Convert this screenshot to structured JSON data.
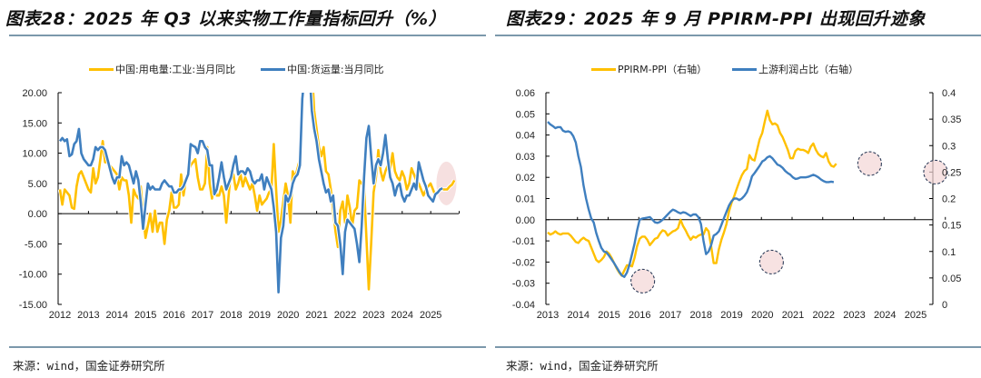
{
  "left": {
    "title": "图表28：2025 年 Q3 以来实物工作量指标回升（%）",
    "source": "来源：wind，国金证券研究所",
    "legend": [
      {
        "label": "中国:用电量:工业:当月同比",
        "color": "#FFC000"
      },
      {
        "label": "中国:货运量:当月同比",
        "color": "#3F7FBF"
      }
    ]
  },
  "right": {
    "title": "图表29：2025 年 9 月 PPIRM-PPI 出现回升迹象",
    "source": "来源：wind，国金证券研究所",
    "legend": [
      {
        "label": "PPIRM-PPI（右轴）",
        "color": "#FFC000"
      },
      {
        "label": "上游利润占比（右轴）",
        "color": "#3F7FBF"
      }
    ]
  },
  "chart_data": [
    {
      "type": "line",
      "title": "2025 年 Q3 以来实物工作量指标回升（%）",
      "xlabel": "",
      "ylabel": "",
      "ylim": [
        -15,
        20
      ],
      "yticks": [
        "20.00",
        "15.00",
        "10.00",
        "5.00",
        "0.00",
        "-5.00",
        "-10.00",
        "-15.00"
      ],
      "ytick_values": [
        20,
        15,
        10,
        5,
        0,
        -5,
        -10,
        -15
      ],
      "xticks": [
        "2012",
        "2013",
        "2014",
        "2015",
        "2016",
        "2017",
        "2018",
        "2019",
        "2020",
        "2021",
        "2022",
        "2023",
        "2024",
        "2025"
      ],
      "x_start": 2012.0,
      "x_step": 0.0833,
      "legend_position": "top",
      "highlight": {
        "x": 2025.55,
        "y": 5.0,
        "label": "2025 Q3"
      },
      "series": [
        {
          "name": "中国:用电量:工业:当月同比",
          "color": "#FFC000",
          "values": [
            4,
            1.5,
            4,
            3.5,
            3,
            1,
            0.8,
            4.5,
            6.5,
            7,
            6,
            5,
            4,
            3.5,
            7.5,
            5,
            6,
            9,
            12,
            8.5,
            8.5,
            8,
            7.5,
            7,
            6.5,
            4,
            6,
            5.5,
            5.5,
            3,
            -1.5,
            4,
            3,
            2.5,
            4.5,
            0,
            -4,
            -2,
            0,
            -3,
            0.5,
            -3,
            -1.5,
            -1.5,
            -5,
            -1,
            0.5,
            3.5,
            1,
            1,
            1.5,
            6.5,
            3,
            5.5,
            7,
            8,
            8.5,
            9,
            6,
            4,
            4,
            5,
            11,
            5,
            2.5,
            5,
            3,
            3,
            4.5,
            3,
            -1.5,
            3,
            7,
            6.5,
            4,
            5,
            6.5,
            4.5,
            6,
            5,
            4,
            5,
            3,
            0.5,
            3,
            1.5,
            2,
            2.5,
            3.5,
            4,
            11.5,
            4,
            -3,
            -1,
            2,
            5,
            3,
            -1.5,
            7,
            6,
            7.5,
            9,
            19,
            22,
            25,
            27,
            24,
            17,
            14,
            11,
            9.5,
            11,
            7,
            6.5,
            4,
            0.5,
            -3,
            -5.5,
            0.5,
            2,
            -1.5,
            3,
            1,
            -2,
            0.5,
            1,
            5.5,
            5,
            4.5,
            -4,
            -12.5,
            -5,
            3.5,
            6,
            10.5,
            7,
            5.5,
            7,
            8,
            7.5,
            10,
            7,
            6,
            5.5,
            7,
            6,
            4,
            5,
            7.5,
            6.5,
            5.5,
            5,
            4,
            3,
            4,
            4.5,
            5,
            4,
            3,
            3.5,
            4,
            4,
            4,
            4,
            4.5,
            4.8,
            5.5
          ]
        },
        {
          "name": "中国:货运量:当月同比",
          "color": "#3F7FBF",
          "values": [
            12,
            12.5,
            12,
            12.3,
            9.5,
            9.8,
            11.5,
            12,
            14,
            10,
            9,
            8.5,
            8,
            8,
            9,
            11,
            10.5,
            11,
            11,
            10.5,
            9,
            7.5,
            6,
            5,
            6,
            6,
            9.5,
            8,
            8.5,
            8,
            6.5,
            5,
            7,
            5.5,
            2,
            -2.5,
            1.5,
            5,
            4,
            4.5,
            4,
            4,
            4,
            5,
            5.5,
            5,
            4.5,
            4.5,
            3.5,
            3.5,
            4,
            4,
            4.5,
            5.5,
            6.5,
            11.5,
            11.2,
            11,
            10,
            12,
            12,
            11,
            10.5,
            8,
            8,
            3.2,
            4,
            6,
            8.5,
            6,
            4,
            5,
            6,
            8,
            9.5,
            6.5,
            7,
            7,
            6.5,
            7.5,
            7,
            5.5,
            5,
            5.5,
            5.5,
            6.5,
            4,
            6,
            5,
            4,
            1,
            -3,
            -13,
            -4,
            -2,
            3,
            2,
            3,
            5,
            6,
            6.5,
            8,
            19,
            23,
            25,
            24,
            17,
            14,
            12,
            9,
            7,
            5,
            3.5,
            4,
            2,
            3,
            -1.5,
            -2,
            -5,
            -10,
            -3,
            -1,
            -1.5,
            -2,
            -2.5,
            -5,
            -8,
            -2,
            6,
            12.5,
            14.5,
            9.5,
            5,
            8,
            9,
            8,
            10,
            13,
            9,
            6,
            5,
            3,
            4.5,
            5,
            3,
            2,
            3,
            3,
            4,
            5,
            4,
            8.5,
            7,
            5.5,
            4.5,
            3,
            2.5,
            2,
            3.2,
            3.5,
            4,
            4.2
          ]
        }
      ]
    },
    {
      "type": "line",
      "title": "2025 年 9 月 PPIRM-PPI 出现回升迹象",
      "xlabel": "",
      "ylabel": "",
      "ylim_left": [
        -0.04,
        0.06
      ],
      "ylim_right": [
        0,
        0.4
      ],
      "yticks_left": [
        "0.06",
        "0.05",
        "0.04",
        "0.03",
        "0.02",
        "0.01",
        "0.00",
        "-0.01",
        "-0.02",
        "-0.03",
        "-0.04"
      ],
      "ytick_values_left": [
        0.06,
        0.05,
        0.04,
        0.03,
        0.02,
        0.01,
        0,
        -0.01,
        -0.02,
        -0.03,
        -0.04
      ],
      "yticks_right": [
        "0.4",
        "0.35",
        "0.3",
        "0.25",
        "0.2",
        "0.15",
        "0.1",
        "0.05",
        "0"
      ],
      "ytick_values_right": [
        0.4,
        0.35,
        0.3,
        0.25,
        0.2,
        0.15,
        0.1,
        0.05,
        0
      ],
      "xticks": [
        "2013",
        "2014",
        "2015",
        "2016",
        "2017",
        "2018",
        "2019",
        "2020",
        "2021",
        "2022",
        "2023",
        "2024",
        "2025"
      ],
      "x_start": 2013.0,
      "x_step": 0.0833,
      "legend_position": "top",
      "highlights": [
        {
          "x": 2016.1,
          "y_left": -0.029
        },
        {
          "x": 2020.3,
          "y_left": -0.02
        },
        {
          "x": 2023.5,
          "y_left": 0.0265
        },
        {
          "x": 2025.65,
          "y_left": 0.0225
        }
      ],
      "series": [
        {
          "name": "PPIRM-PPI（右轴）",
          "axis": "left",
          "color": "#FFC000",
          "values": [
            -0.006,
            -0.007,
            -0.0065,
            -0.0055,
            -0.0065,
            -0.007,
            -0.0065,
            -0.0065,
            -0.0065,
            -0.0075,
            -0.009,
            -0.0105,
            -0.011,
            -0.0095,
            -0.0085,
            -0.0095,
            -0.01,
            -0.013,
            -0.016,
            -0.019,
            -0.02,
            -0.019,
            -0.0175,
            -0.015,
            -0.016,
            -0.018,
            -0.0205,
            -0.023,
            -0.025,
            -0.0265,
            -0.024,
            -0.0215,
            -0.0215,
            -0.022,
            -0.018,
            -0.0125,
            -0.009,
            -0.008,
            -0.008,
            -0.0095,
            -0.012,
            -0.0105,
            -0.009,
            -0.0085,
            -0.0065,
            -0.005,
            -0.0055,
            -0.0075,
            -0.0065,
            -0.0055,
            -0.005,
            -0.004,
            0,
            -0.003,
            -0.005,
            -0.0075,
            -0.0095,
            -0.008,
            -0.0085,
            -0.0075,
            -0.007,
            -0.007,
            -0.004,
            -0.0055,
            -0.0125,
            -0.0205,
            -0.0205,
            -0.014,
            -0.0095,
            -0.006,
            -0.002,
            0.004,
            0.008,
            0.011,
            0.0145,
            0.018,
            0.021,
            0.023,
            0.024,
            0.0305,
            0.0285,
            0.028,
            0.033,
            0.038,
            0.041,
            0.0465,
            0.0515,
            0.047,
            0.045,
            0.0455,
            0.0445,
            0.041,
            0.039,
            0.036,
            0.033,
            0.029,
            0.029,
            0.0325,
            0.0335,
            0.033,
            0.033,
            0.0325,
            0.0315,
            0.0345,
            0.036,
            0.033,
            0.031,
            0.03,
            0.0295,
            0.0315,
            0.0275,
            0.0255,
            0.025,
            0.0265
          ]
        },
        {
          "name": "上游利润占比（右轴）",
          "axis": "right",
          "color": "#3F7FBF",
          "values": [
            0.345,
            0.34,
            0.337,
            0.333,
            0.335,
            0.335,
            0.328,
            0.326,
            0.327,
            0.325,
            0.318,
            0.306,
            0.28,
            0.26,
            0.225,
            0.2,
            0.18,
            0.163,
            0.155,
            0.135,
            0.12,
            0.107,
            0.1,
            0.098,
            0.092,
            0.085,
            0.078,
            0.07,
            0.062,
            0.055,
            0.052,
            0.06,
            0.075,
            0.095,
            0.115,
            0.14,
            0.16,
            0.162,
            0.163,
            0.164,
            0.165,
            0.16,
            0.155,
            0.154,
            0.156,
            0.16,
            0.165,
            0.17,
            0.175,
            0.179,
            0.177,
            0.174,
            0.172,
            0.174,
            0.173,
            0.17,
            0.167,
            0.17,
            0.17,
            0.165,
            0.152,
            0.12,
            0.095,
            0.1,
            0.112,
            0.13,
            0.133,
            0.138,
            0.15,
            0.163,
            0.175,
            0.187,
            0.195,
            0.2,
            0.2,
            0.197,
            0.2,
            0.205,
            0.212,
            0.225,
            0.242,
            0.248,
            0.255,
            0.262,
            0.27,
            0.273,
            0.278,
            0.28,
            0.276,
            0.27,
            0.264,
            0.262,
            0.258,
            0.252,
            0.248,
            0.245,
            0.24,
            0.237,
            0.238,
            0.24,
            0.24,
            0.24,
            0.241,
            0.243,
            0.245,
            0.243,
            0.24,
            0.236,
            0.233,
            0.231,
            0.231,
            0.232,
            0.231
          ]
        }
      ]
    }
  ]
}
